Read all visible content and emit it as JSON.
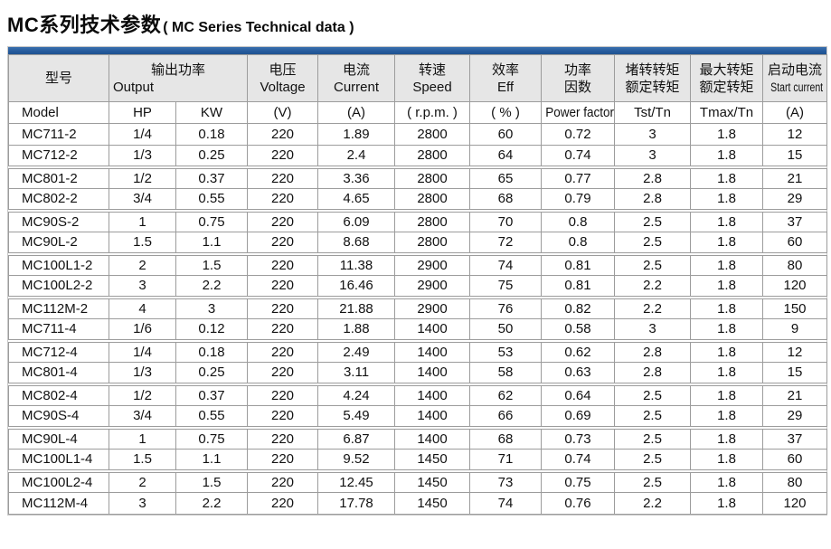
{
  "title": {
    "zh": "MC系列技术参数",
    "en": "( MC Series Technical data )"
  },
  "colors": {
    "accent_blue": "#24599b",
    "header_bg": "#e6e6e6",
    "grid_line": "#9c9c9c"
  },
  "table": {
    "header": {
      "model": {
        "zh": "型号",
        "en": "Model"
      },
      "output": {
        "zh": "输出功率",
        "en": "Output",
        "sub": [
          "HP",
          "KW"
        ]
      },
      "voltage": {
        "zh": "电压",
        "en": "Voltage",
        "unit": "(V)"
      },
      "current": {
        "zh": "电流",
        "en": "Current",
        "unit": "(A)"
      },
      "speed": {
        "zh": "转速",
        "en": "Speed",
        "unit": "( r.p.m. )"
      },
      "eff": {
        "zh": "效率",
        "en": "Eff",
        "unit": "( % )"
      },
      "power_factor": {
        "zh1": "功率",
        "zh2": "因数",
        "en": "Power factor"
      },
      "tst": {
        "zh1": "堵转转矩",
        "zh2": "额定转矩",
        "en": "Tst/Tn"
      },
      "tmax": {
        "zh1": "最大转矩",
        "zh2": "额定转矩",
        "en": "Tmax/Tn"
      },
      "start_current": {
        "zh": "启动电流",
        "en": "Start current",
        "unit": "(A)"
      }
    },
    "rows": [
      [
        "MC711-2",
        "1/4",
        "0.18",
        "220",
        "1.89",
        "2800",
        "60",
        "0.72",
        "3",
        "1.8",
        "12"
      ],
      [
        "MC712-2",
        "1/3",
        "0.25",
        "220",
        "2.4",
        "2800",
        "64",
        "0.74",
        "3",
        "1.8",
        "15"
      ],
      [
        "MC801-2",
        "1/2",
        "0.37",
        "220",
        "3.36",
        "2800",
        "65",
        "0.77",
        "2.8",
        "1.8",
        "21"
      ],
      [
        "MC802-2",
        "3/4",
        "0.55",
        "220",
        "4.65",
        "2800",
        "68",
        "0.79",
        "2.8",
        "1.8",
        "29"
      ],
      [
        "MC90S-2",
        "1",
        "0.75",
        "220",
        "6.09",
        "2800",
        "70",
        "0.8",
        "2.5",
        "1.8",
        "37"
      ],
      [
        "MC90L-2",
        "1.5",
        "1.1",
        "220",
        "8.68",
        "2800",
        "72",
        "0.8",
        "2.5",
        "1.8",
        "60"
      ],
      [
        "MC100L1-2",
        "2",
        "1.5",
        "220",
        "11.38",
        "2900",
        "74",
        "0.81",
        "2.5",
        "1.8",
        "80"
      ],
      [
        "MC100L2-2",
        "3",
        "2.2",
        "220",
        "16.46",
        "2900",
        "75",
        "0.81",
        "2.2",
        "1.8",
        "120"
      ],
      [
        "MC112M-2",
        "4",
        "3",
        "220",
        "21.88",
        "2900",
        "76",
        "0.82",
        "2.2",
        "1.8",
        "150"
      ],
      [
        "MC711-4",
        "1/6",
        "0.12",
        "220",
        "1.88",
        "1400",
        "50",
        "0.58",
        "3",
        "1.8",
        "9"
      ],
      [
        "MC712-4",
        "1/4",
        "0.18",
        "220",
        "2.49",
        "1400",
        "53",
        "0.62",
        "2.8",
        "1.8",
        "12"
      ],
      [
        "MC801-4",
        "1/3",
        "0.25",
        "220",
        "3.11",
        "1400",
        "58",
        "0.63",
        "2.8",
        "1.8",
        "15"
      ],
      [
        "MC802-4",
        "1/2",
        "0.37",
        "220",
        "4.24",
        "1400",
        "62",
        "0.64",
        "2.5",
        "1.8",
        "21"
      ],
      [
        "MC90S-4",
        "3/4",
        "0.55",
        "220",
        "5.49",
        "1400",
        "66",
        "0.69",
        "2.5",
        "1.8",
        "29"
      ],
      [
        "MC90L-4",
        "1",
        "0.75",
        "220",
        "6.87",
        "1400",
        "68",
        "0.73",
        "2.5",
        "1.8",
        "37"
      ],
      [
        "MC100L1-4",
        "1.5",
        "1.1",
        "220",
        "9.52",
        "1450",
        "71",
        "0.74",
        "2.5",
        "1.8",
        "60"
      ],
      [
        "MC100L2-4",
        "2",
        "1.5",
        "220",
        "12.45",
        "1450",
        "73",
        "0.75",
        "2.5",
        "1.8",
        "80"
      ],
      [
        "MC112M-4",
        "3",
        "2.2",
        "220",
        "17.78",
        "1450",
        "74",
        "0.76",
        "2.2",
        "1.8",
        "120"
      ]
    ]
  }
}
